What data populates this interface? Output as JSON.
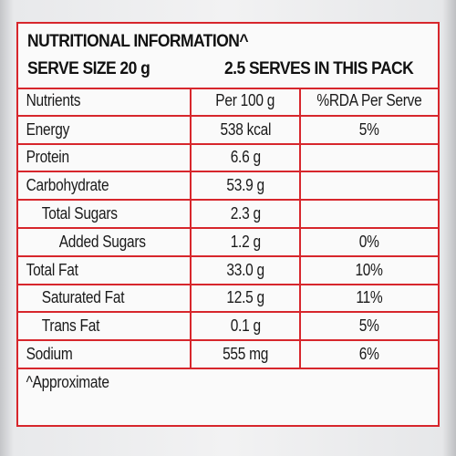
{
  "header": {
    "title": "NUTRITIONAL INFORMATION^",
    "serve_size": "SERVE SIZE 20 g",
    "serves_per_pack": "2.5 SERVES IN THIS PACK"
  },
  "table": {
    "columns": [
      "Nutrients",
      "Per 100 g",
      "%RDA Per Serve"
    ],
    "rows": [
      {
        "name": "Energy",
        "per100": "538 kcal",
        "rda": "5%"
      },
      {
        "name": "Protein",
        "per100": "6.6 g",
        "rda": ""
      },
      {
        "name": "Carbohydrate",
        "per100": "53.9 g",
        "rda": ""
      },
      {
        "name": "Total Sugars",
        "per100": "2.3 g",
        "rda": ""
      },
      {
        "name": "Added Sugars",
        "per100": "1.2 g",
        "rda": "0%"
      },
      {
        "name": "Total Fat",
        "per100": "33.0 g",
        "rda": "10%"
      },
      {
        "name": "Saturated Fat",
        "per100": "12.5 g",
        "rda": "11%"
      },
      {
        "name": "Trans Fat",
        "per100": "0.1 g",
        "rda": "5%"
      },
      {
        "name": "Sodium",
        "per100": "555 mg",
        "rda": "6%"
      }
    ],
    "footnote": "^Approximate"
  },
  "colors": {
    "border": "#d7262c",
    "text": "#1a1a1a",
    "panel": "#fafafa"
  }
}
